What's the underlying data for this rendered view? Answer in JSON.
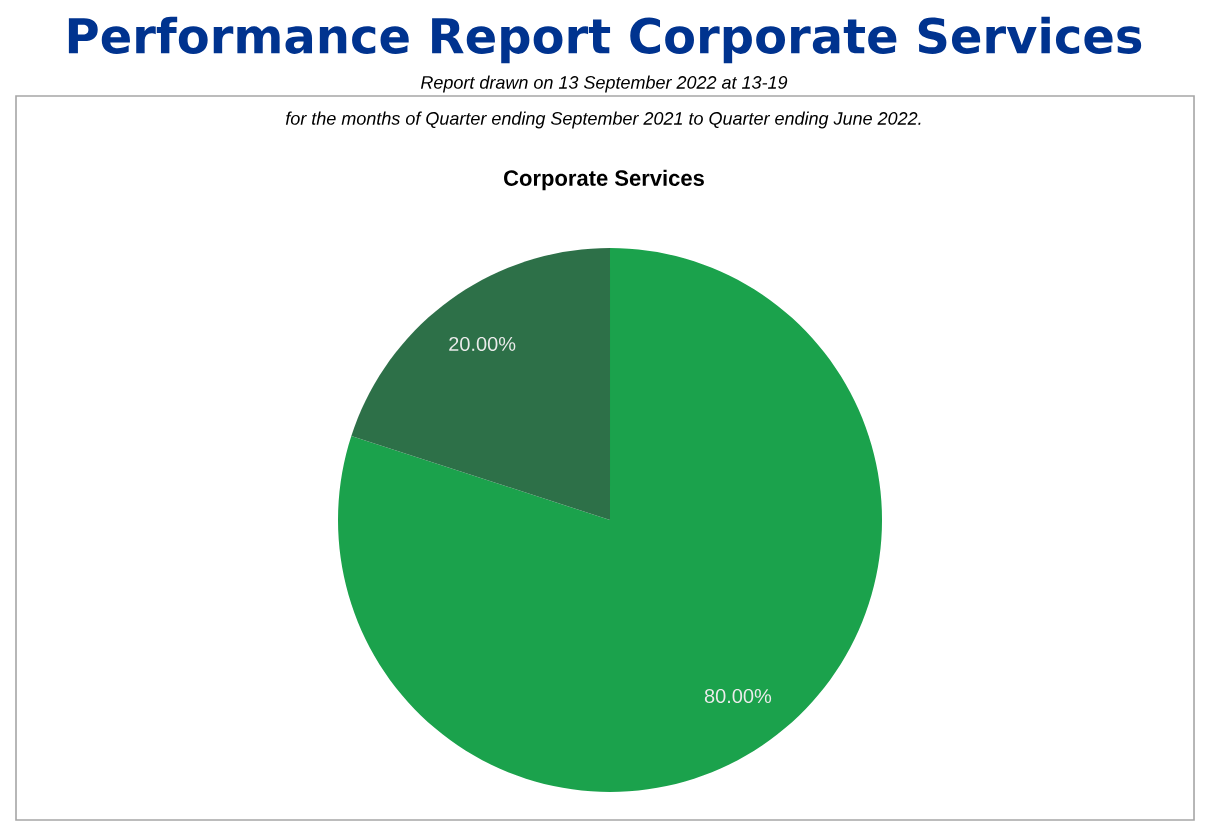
{
  "chart_data": {
    "type": "pie",
    "title": "Performance Report Corporate Services",
    "subtitle": "Report drawn on 13 September 2022 at 13-19",
    "annotations": [
      "for the months of Quarter ending September 2021 to Quarter ending June 2022.",
      "Corporate Services"
    ],
    "categories": [
      null,
      null
    ],
    "values": [
      80,
      20
    ],
    "colors": [
      "#1ba24c",
      "#2d7048"
    ],
    "value_labels": [
      "80.00%",
      "20.00%"
    ]
  }
}
